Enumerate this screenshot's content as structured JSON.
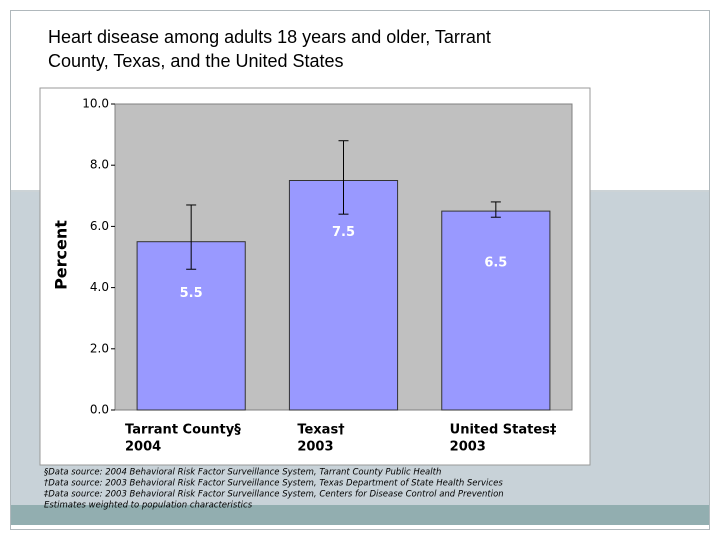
{
  "chart_data": {
    "type": "bar",
    "title": [
      "Heart disease among adults 18 years and older, Tarrant",
      "County, Texas, and the United States"
    ],
    "y_label": "Percent",
    "categories": [
      [
        "Tarrant County§",
        "2004"
      ],
      [
        "Texas†",
        "2003"
      ],
      [
        "United States‡",
        "2003"
      ]
    ],
    "values": [
      5.5,
      7.5,
      6.5
    ],
    "ci_lower": [
      4.6,
      6.4,
      6.3
    ],
    "ci_upper": [
      6.7,
      8.8,
      6.8
    ],
    "color": "#9999ff",
    "plot_background": "#c0c0c0",
    "ylim": [
      0,
      10
    ],
    "yticks": [
      {
        "value": 0,
        "label": "0.0"
      },
      {
        "value": 2,
        "label": "2.0"
      },
      {
        "value": 4,
        "label": "4.0"
      },
      {
        "value": 6,
        "label": "6.0"
      },
      {
        "value": 8,
        "label": "8.0"
      },
      {
        "value": 10,
        "label": "10.0"
      }
    ],
    "grid": false,
    "footnotes": [
      "§Data source: 2004 Behavioral Risk Factor Surveillance System, Tarrant County Public Health",
      "†Data source: 2003 Behavioral Risk Factor Surveillance System, Texas Department of State Health Services",
      "‡Data source: 2003 Behavioral Risk Factor Surveillance System, Centers for Disease Control and Prevention",
      "Estimates weighted to population characteristics"
    ]
  }
}
